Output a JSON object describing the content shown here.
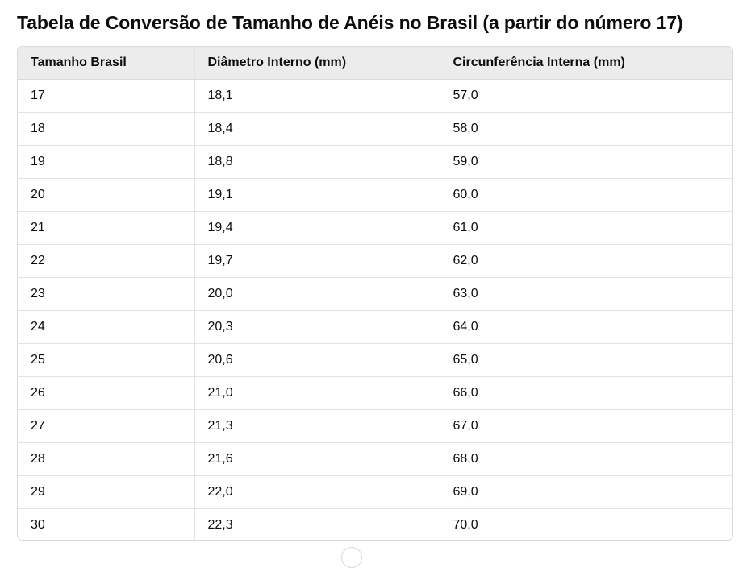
{
  "title": "Tabela de Conversão de Tamanho de Anéis no Brasil (a partir do número 17)",
  "table": {
    "headers": [
      "Tamanho Brasil",
      "Diâmetro Interno (mm)",
      "Circunferência Interna (mm)"
    ],
    "rows": [
      [
        "17",
        "18,1",
        "57,0"
      ],
      [
        "18",
        "18,4",
        "58,0"
      ],
      [
        "19",
        "18,8",
        "59,0"
      ],
      [
        "20",
        "19,1",
        "60,0"
      ],
      [
        "21",
        "19,4",
        "61,0"
      ],
      [
        "22",
        "19,7",
        "62,0"
      ],
      [
        "23",
        "20,0",
        "63,0"
      ],
      [
        "24",
        "20,3",
        "64,0"
      ],
      [
        "25",
        "20,6",
        "65,0"
      ],
      [
        "26",
        "21,0",
        "66,0"
      ],
      [
        "27",
        "21,3",
        "67,0"
      ],
      [
        "28",
        "21,6",
        "68,0"
      ],
      [
        "29",
        "22,0",
        "69,0"
      ],
      [
        "30",
        "22,3",
        "70,0"
      ]
    ]
  },
  "colors": {
    "header_bg": "#ececec",
    "border": "#d9d9d9",
    "text": "#0d0d0d"
  }
}
